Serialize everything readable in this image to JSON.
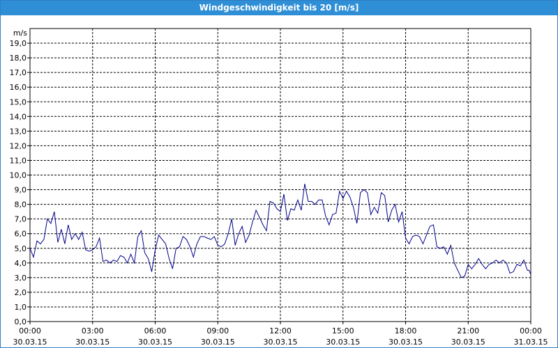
{
  "window": {
    "title": "Windgeschwindigkeit bis 20 [m/s]"
  },
  "chart_data": {
    "type": "line",
    "title": "Windgeschwindigkeit bis 20 [m/s]",
    "ylabel": "m/s",
    "ylim": [
      0,
      20
    ],
    "yticks": [
      "0,0",
      "1,0",
      "2,0",
      "3,0",
      "4,0",
      "5,0",
      "6,0",
      "7,0",
      "8,0",
      "9,0",
      "10,0",
      "11,0",
      "12,0",
      "13,0",
      "14,0",
      "15,0",
      "16,0",
      "17,0",
      "18,0",
      "19,0"
    ],
    "xlim_hours": [
      0,
      24
    ],
    "xticks": [
      {
        "time": "00:00",
        "date": "30.03.15"
      },
      {
        "time": "03:00",
        "date": "30.03.15"
      },
      {
        "time": "06:00",
        "date": "30.03.15"
      },
      {
        "time": "09:00",
        "date": "30.03.15"
      },
      {
        "time": "12:00",
        "date": "30.03.15"
      },
      {
        "time": "15:00",
        "date": "30.03.15"
      },
      {
        "time": "18:00",
        "date": "30.03.15"
      },
      {
        "time": "21:00",
        "date": "30.03.15"
      },
      {
        "time": "00:00",
        "date": "31.03.15"
      }
    ],
    "grid": true,
    "series": [
      {
        "color": "#00008b",
        "points": [
          [
            "00:00",
            5.0
          ],
          [
            "00:10",
            4.4
          ],
          [
            "00:20",
            5.5
          ],
          [
            "00:30",
            5.3
          ],
          [
            "00:40",
            5.6
          ],
          [
            "00:50",
            7.0
          ],
          [
            "01:00",
            6.7
          ],
          [
            "01:10",
            7.5
          ],
          [
            "01:20",
            5.4
          ],
          [
            "01:30",
            6.3
          ],
          [
            "01:40",
            5.3
          ],
          [
            "01:50",
            6.6
          ],
          [
            "02:00",
            5.6
          ],
          [
            "02:10",
            6.0
          ],
          [
            "02:20",
            5.6
          ],
          [
            "02:30",
            6.1
          ],
          [
            "02:40",
            4.9
          ],
          [
            "02:50",
            4.8
          ],
          [
            "03:00",
            4.9
          ],
          [
            "03:10",
            5.1
          ],
          [
            "03:20",
            5.7
          ],
          [
            "03:30",
            4.1
          ],
          [
            "03:40",
            4.2
          ],
          [
            "03:50",
            4.0
          ],
          [
            "04:00",
            4.2
          ],
          [
            "04:10",
            4.1
          ],
          [
            "04:20",
            4.5
          ],
          [
            "04:30",
            4.4
          ],
          [
            "04:40",
            4.0
          ],
          [
            "04:50",
            4.6
          ],
          [
            "05:00",
            4.0
          ],
          [
            "05:10",
            5.8
          ],
          [
            "05:20",
            6.2
          ],
          [
            "05:30",
            4.7
          ],
          [
            "05:40",
            4.3
          ],
          [
            "05:50",
            3.4
          ],
          [
            "06:00",
            4.9
          ],
          [
            "06:10",
            5.9
          ],
          [
            "06:20",
            5.6
          ],
          [
            "06:30",
            5.3
          ],
          [
            "06:40",
            4.3
          ],
          [
            "06:50",
            3.6
          ],
          [
            "07:00",
            5.0
          ],
          [
            "07:10",
            5.1
          ],
          [
            "07:20",
            5.8
          ],
          [
            "07:30",
            5.6
          ],
          [
            "07:40",
            5.1
          ],
          [
            "07:50",
            4.4
          ],
          [
            "08:00",
            5.3
          ],
          [
            "08:10",
            5.8
          ],
          [
            "08:20",
            5.8
          ],
          [
            "08:30",
            5.7
          ],
          [
            "08:40",
            5.6
          ],
          [
            "08:50",
            5.8
          ],
          [
            "09:00",
            5.2
          ],
          [
            "09:10",
            5.1
          ],
          [
            "09:20",
            5.3
          ],
          [
            "09:30",
            6.0
          ],
          [
            "09:40",
            7.0
          ],
          [
            "09:50",
            5.2
          ],
          [
            "10:00",
            6.0
          ],
          [
            "10:10",
            6.5
          ],
          [
            "10:20",
            5.4
          ],
          [
            "10:30",
            5.9
          ],
          [
            "10:40",
            6.8
          ],
          [
            "10:50",
            7.6
          ],
          [
            "11:00",
            7.1
          ],
          [
            "11:10",
            6.6
          ],
          [
            "11:20",
            6.2
          ],
          [
            "11:30",
            8.2
          ],
          [
            "11:40",
            8.1
          ],
          [
            "11:50",
            7.7
          ],
          [
            "12:00",
            7.5
          ],
          [
            "12:10",
            8.7
          ],
          [
            "12:20",
            6.9
          ],
          [
            "12:30",
            7.7
          ],
          [
            "12:40",
            7.6
          ],
          [
            "12:50",
            8.3
          ],
          [
            "13:00",
            7.6
          ],
          [
            "13:10",
            9.4
          ],
          [
            "13:20",
            8.2
          ],
          [
            "13:30",
            8.2
          ],
          [
            "13:40",
            8.0
          ],
          [
            "13:50",
            8.3
          ],
          [
            "14:00",
            8.3
          ],
          [
            "14:10",
            7.2
          ],
          [
            "14:20",
            6.6
          ],
          [
            "14:30",
            7.3
          ],
          [
            "14:40",
            7.4
          ],
          [
            "14:50",
            8.9
          ],
          [
            "15:00",
            8.4
          ],
          [
            "15:10",
            8.9
          ],
          [
            "15:20",
            8.5
          ],
          [
            "15:30",
            7.8
          ],
          [
            "15:40",
            6.7
          ],
          [
            "15:50",
            8.8
          ],
          [
            "16:00",
            9.0
          ],
          [
            "16:10",
            8.8
          ],
          [
            "16:20",
            7.3
          ],
          [
            "16:30",
            7.8
          ],
          [
            "16:40",
            7.4
          ],
          [
            "16:50",
            8.8
          ],
          [
            "17:00",
            8.6
          ],
          [
            "17:10",
            6.8
          ],
          [
            "17:20",
            7.6
          ],
          [
            "17:30",
            8.0
          ],
          [
            "17:40",
            6.8
          ],
          [
            "17:50",
            7.5
          ],
          [
            "18:00",
            5.7
          ],
          [
            "18:10",
            5.3
          ],
          [
            "18:20",
            5.8
          ],
          [
            "18:30",
            5.9
          ],
          [
            "18:40",
            5.8
          ],
          [
            "18:50",
            5.3
          ],
          [
            "19:00",
            5.9
          ],
          [
            "19:10",
            6.5
          ],
          [
            "19:20",
            6.6
          ],
          [
            "19:30",
            5.1
          ],
          [
            "19:40",
            5.0
          ],
          [
            "19:50",
            5.1
          ],
          [
            "20:00",
            4.6
          ],
          [
            "20:10",
            5.2
          ],
          [
            "20:20",
            4.0
          ],
          [
            "20:30",
            3.5
          ],
          [
            "20:40",
            3.0
          ],
          [
            "20:50",
            3.1
          ],
          [
            "21:00",
            3.9
          ],
          [
            "21:10",
            3.6
          ],
          [
            "21:20",
            3.9
          ],
          [
            "21:30",
            4.3
          ],
          [
            "21:40",
            3.9
          ],
          [
            "21:50",
            3.6
          ],
          [
            "22:00",
            3.9
          ],
          [
            "22:10",
            4.0
          ],
          [
            "22:20",
            4.2
          ],
          [
            "22:30",
            4.0
          ],
          [
            "22:40",
            4.2
          ],
          [
            "22:50",
            4.0
          ],
          [
            "23:00",
            3.3
          ],
          [
            "23:10",
            3.4
          ],
          [
            "23:20",
            3.9
          ],
          [
            "23:30",
            3.8
          ],
          [
            "23:40",
            4.2
          ],
          [
            "23:50",
            3.5
          ],
          [
            "23:55",
            3.5
          ],
          [
            "24:00",
            3.2
          ]
        ]
      }
    ]
  }
}
